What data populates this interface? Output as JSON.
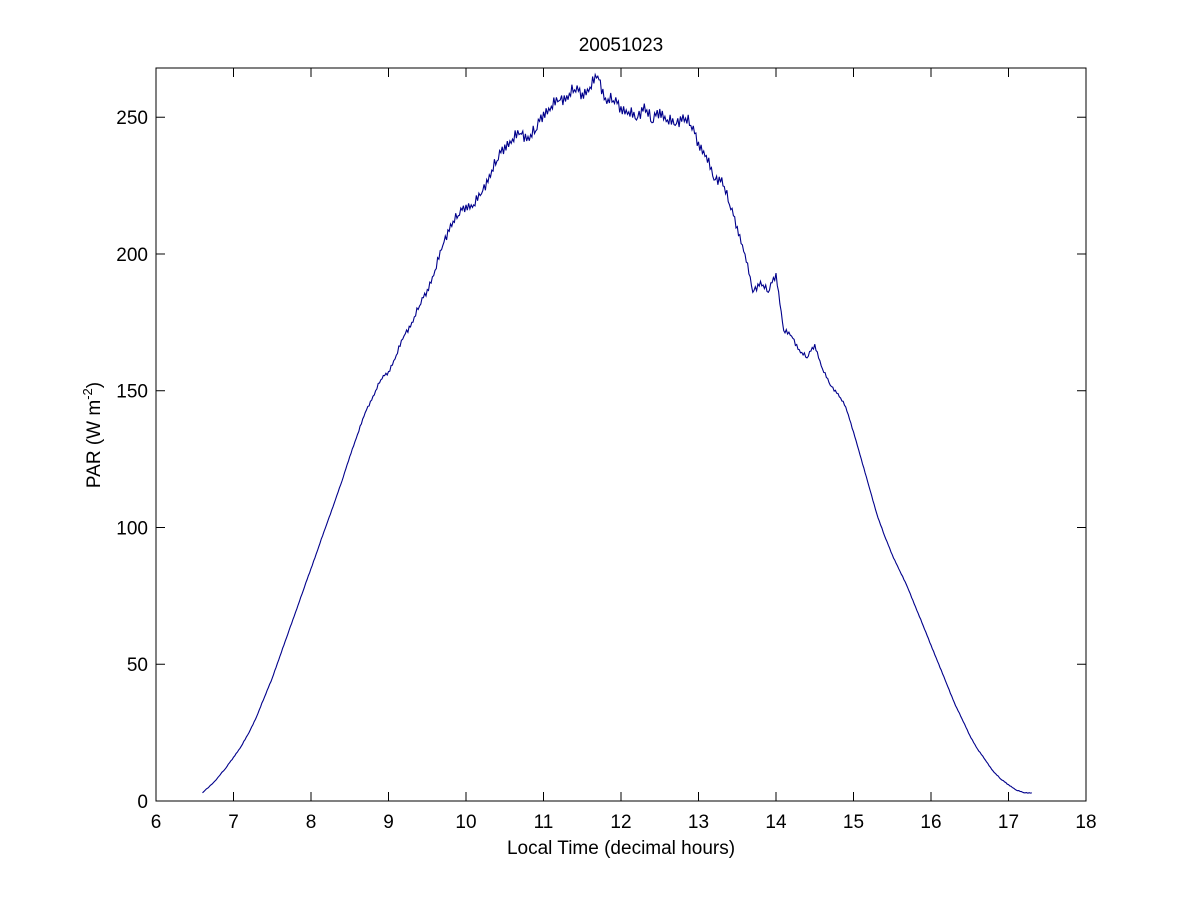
{
  "chart_data": {
    "type": "line",
    "title": "20051023",
    "xlabel": "Local Time (decimal hours)",
    "ylabel": {
      "text": "PAR (W m",
      "superscript": "-2",
      "suffix": ")"
    },
    "xlim": [
      6,
      18
    ],
    "ylim": [
      0,
      268
    ],
    "xticks": [
      "6",
      "7",
      "8",
      "9",
      "10",
      "11",
      "12",
      "13",
      "14",
      "15",
      "16",
      "17",
      "18"
    ],
    "yticks": [
      "0",
      "50",
      "100",
      "150",
      "200",
      "250"
    ],
    "grid": false,
    "line_color": "#00008b",
    "series": [
      {
        "x": [
          6.6,
          6.75,
          6.9,
          7.0,
          7.1,
          7.2,
          7.3,
          7.4,
          7.5,
          7.6,
          7.7,
          7.8,
          7.9,
          8.0,
          8.1,
          8.2,
          8.3,
          8.4,
          8.5,
          8.6,
          8.7,
          8.8,
          8.9,
          9.0,
          9.1,
          9.2,
          9.3,
          9.4,
          9.5,
          9.6,
          9.7,
          9.8,
          9.9,
          10.0,
          10.1,
          10.2,
          10.3,
          10.4,
          10.5,
          10.6,
          10.7,
          10.8,
          10.9,
          11.0,
          11.1,
          11.2,
          11.3,
          11.4,
          11.5,
          11.6,
          11.7,
          11.8,
          11.9,
          12.0,
          12.1,
          12.2,
          12.3,
          12.4,
          12.5,
          12.6,
          12.7,
          12.8,
          12.9,
          13.0,
          13.1,
          13.2,
          13.3,
          13.4,
          13.5,
          13.6,
          13.7,
          13.8,
          13.9,
          14.0,
          14.1,
          14.2,
          14.3,
          14.4,
          14.5,
          14.6,
          14.7,
          14.8,
          14.9,
          15.0,
          15.1,
          15.2,
          15.3,
          15.4,
          15.5,
          15.6,
          15.7,
          15.8,
          15.9,
          16.0,
          16.1,
          16.2,
          16.3,
          16.4,
          16.5,
          16.6,
          16.7,
          16.8,
          16.9,
          17.0,
          17.1,
          17.2,
          17.3
        ],
        "y": [
          3,
          7,
          12,
          16,
          20,
          25,
          31,
          38,
          45,
          53,
          61,
          69,
          77,
          85,
          93,
          101,
          109,
          117,
          126,
          134,
          142,
          148,
          154,
          157,
          163,
          170,
          175,
          181,
          187,
          194,
          203,
          211,
          214,
          218,
          218,
          222,
          229,
          234,
          240,
          242,
          244,
          243,
          245,
          252,
          254,
          256,
          258,
          260,
          259,
          261,
          265,
          257,
          256,
          254,
          252,
          249,
          255,
          248,
          253,
          249,
          247,
          251,
          247,
          241,
          236,
          227,
          228,
          218,
          210,
          200,
          186,
          190,
          186,
          193,
          172,
          170,
          165,
          162,
          167,
          158,
          152,
          149,
          144,
          135,
          125,
          115,
          105,
          97,
          90,
          84,
          78,
          71,
          64,
          57,
          50,
          43,
          36,
          30,
          24,
          19,
          15,
          11,
          8,
          6,
          4,
          3,
          3
        ]
      }
    ]
  }
}
